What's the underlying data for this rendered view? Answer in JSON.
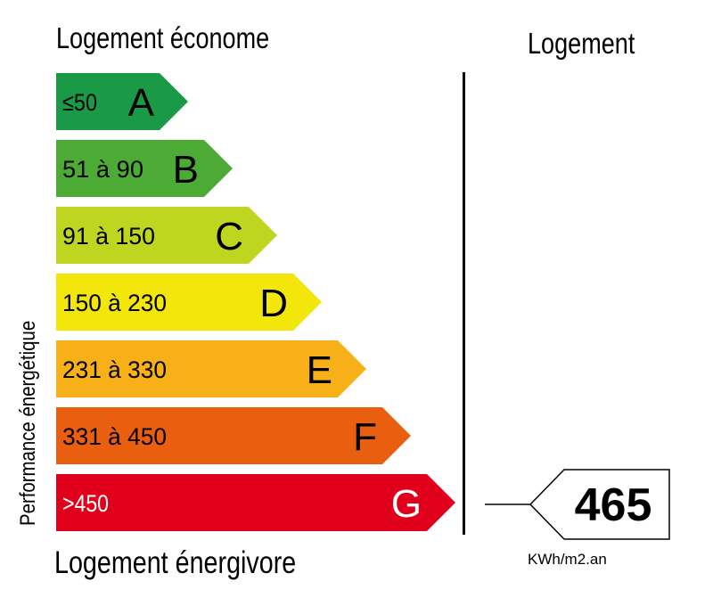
{
  "labels": {
    "top_left": "Logement économe",
    "top_right": "Logement",
    "bottom": "Logement énergivore",
    "vertical": "Performance énergétique",
    "unit": "KWh/m2.an"
  },
  "classes": [
    {
      "letter": "A",
      "range": "≤50",
      "color": "#1a9a46",
      "text_color": "#000000"
    },
    {
      "letter": "B",
      "range": "51 à 90",
      "color": "#4cab35",
      "text_color": "#000000"
    },
    {
      "letter": "C",
      "range": "91 à 150",
      "color": "#bed620",
      "text_color": "#000000"
    },
    {
      "letter": "D",
      "range": "150 à 230",
      "color": "#f2e60a",
      "text_color": "#000000"
    },
    {
      "letter": "E",
      "range": "231 à 330",
      "color": "#f7b017",
      "text_color": "#000000"
    },
    {
      "letter": "F",
      "range": "331 à 450",
      "color": "#ea5e0f",
      "text_color": "#000000"
    },
    {
      "letter": "G",
      "range": ">450",
      "color": "#e0001b",
      "text_color": "#ffffff"
    }
  ],
  "value": {
    "number": "465",
    "class": "G"
  }
}
